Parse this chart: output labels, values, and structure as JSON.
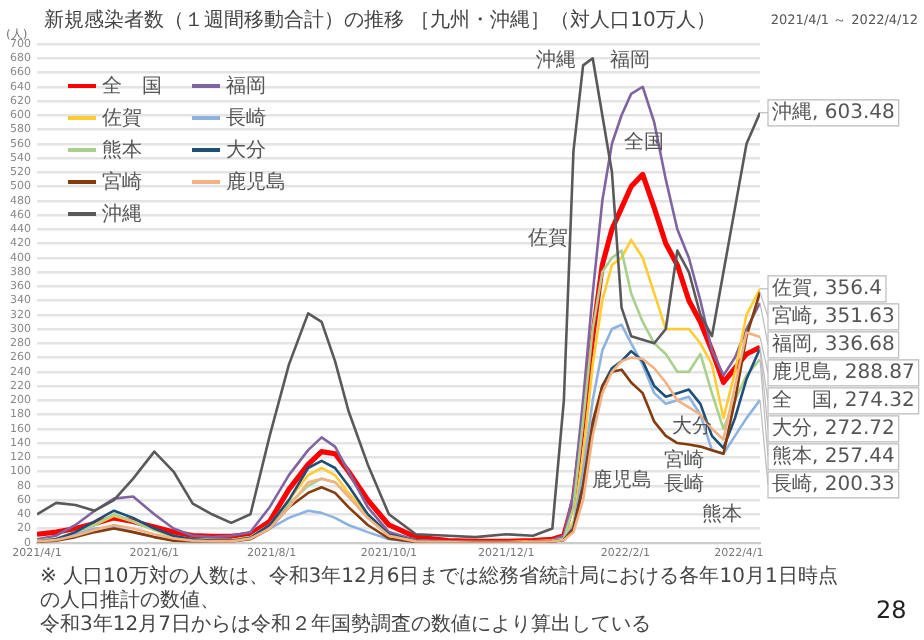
{
  "chart_data": {
    "type": "line",
    "title": "新規感染者数（１週間移動合計）の推移 ［九州・沖縄］（対人口10万人）",
    "subtitle": "2021/4/1 ～ 2022/4/12",
    "ylabel": "(人)",
    "x": [
      "2021-04-01",
      "2021-04-11",
      "2021-04-21",
      "2021-05-01",
      "2021-05-11",
      "2021-05-21",
      "2021-06-01",
      "2021-06-11",
      "2021-06-21",
      "2021-07-01",
      "2021-07-11",
      "2021-07-21",
      "2021-07-31",
      "2021-08-10",
      "2021-08-20",
      "2021-08-27",
      "2021-09-03",
      "2021-09-10",
      "2021-09-20",
      "2021-10-01",
      "2021-10-15",
      "2021-11-01",
      "2021-11-15",
      "2021-12-01",
      "2021-12-15",
      "2021-12-25",
      "2021-12-31",
      "2022-01-05",
      "2022-01-10",
      "2022-01-15",
      "2022-01-20",
      "2022-01-25",
      "2022-01-30",
      "2022-02-04",
      "2022-02-10",
      "2022-02-16",
      "2022-02-22",
      "2022-02-28",
      "2022-03-06",
      "2022-03-12",
      "2022-03-18",
      "2022-03-24",
      "2022-03-30",
      "2022-04-05",
      "2022-04-12"
    ],
    "xlim": [
      "2021-04-01",
      "2022-04-12"
    ],
    "ylim": [
      0,
      700
    ],
    "yticks": [
      0,
      20,
      40,
      60,
      80,
      100,
      120,
      140,
      160,
      180,
      200,
      220,
      240,
      260,
      280,
      300,
      320,
      340,
      360,
      380,
      400,
      420,
      440,
      460,
      480,
      500,
      520,
      540,
      560,
      580,
      600,
      620,
      640,
      660,
      680,
      700
    ],
    "xticks": [
      {
        "value": "2021-04-01",
        "label": "2021/4/1"
      },
      {
        "value": "2021-06-01",
        "label": "2021/6/1"
      },
      {
        "value": "2021-08-01",
        "label": "2021/8/1"
      },
      {
        "value": "2021-10-01",
        "label": "2021/10/1"
      },
      {
        "value": "2021-12-01",
        "label": "2021/12/1"
      },
      {
        "value": "2022-02-01",
        "label": "2022/2/1"
      },
      {
        "value": "2022-04-01",
        "label": "2022/4/1"
      }
    ],
    "grid": "y",
    "legend": "top left",
    "marker": "none",
    "line_style": "solid",
    "series": [
      {
        "name": "全　国",
        "color": "#ff0000",
        "values": [
          12,
          15,
          20,
          27,
          35,
          30,
          22,
          15,
          10,
          9,
          9,
          12,
          30,
          75,
          110,
          128,
          125,
          100,
          60,
          25,
          8,
          3,
          2,
          2,
          3,
          5,
          10,
          60,
          170,
          290,
          390,
          440,
          470,
          500,
          517,
          470,
          420,
          390,
          340,
          310,
          270,
          225,
          245,
          265,
          274.32
        ],
        "value_labels": [
          null,
          null,
          null,
          null,
          null,
          null,
          null,
          null,
          null,
          null,
          null,
          null,
          null,
          null,
          null,
          null,
          null,
          null,
          null,
          null,
          null,
          null,
          null,
          null,
          null,
          null,
          null,
          null,
          null,
          null,
          null,
          null,
          null,
          null,
          null,
          null,
          null,
          null,
          null,
          null,
          null,
          null,
          null,
          null,
          "全　国, 274.32"
        ]
      },
      {
        "name": "福岡",
        "color": "#8064a2",
        "values": [
          5,
          10,
          25,
          45,
          62,
          65,
          40,
          20,
          10,
          8,
          10,
          15,
          50,
          95,
          130,
          148,
          135,
          100,
          50,
          15,
          4,
          2,
          1,
          1,
          2,
          4,
          10,
          70,
          200,
          350,
          480,
          560,
          600,
          630,
          640,
          590,
          510,
          440,
          400,
          340,
          270,
          235,
          260,
          300,
          336.68
        ],
        "value_labels": [
          null,
          null,
          null,
          null,
          null,
          null,
          null,
          null,
          null,
          null,
          null,
          null,
          null,
          null,
          null,
          null,
          null,
          null,
          null,
          null,
          null,
          null,
          null,
          null,
          null,
          null,
          null,
          null,
          null,
          null,
          null,
          null,
          null,
          null,
          null,
          null,
          null,
          null,
          null,
          null,
          null,
          null,
          null,
          null,
          "福岡, 336.68"
        ]
      },
      {
        "name": "佐賀",
        "color": "#ffcc33",
        "values": [
          null,
          null,
          15,
          25,
          38,
          30,
          18,
          10,
          5,
          4,
          4,
          8,
          25,
          60,
          95,
          105,
          95,
          70,
          40,
          12,
          3,
          1,
          1,
          1,
          2,
          3,
          5,
          30,
          120,
          250,
          340,
          390,
          400,
          425,
          400,
          350,
          300,
          300,
          300,
          280,
          250,
          175,
          240,
          320,
          356.4
        ],
        "value_labels": [
          null,
          null,
          null,
          null,
          null,
          null,
          null,
          null,
          null,
          null,
          null,
          null,
          null,
          null,
          null,
          null,
          null,
          null,
          null,
          null,
          null,
          null,
          null,
          null,
          null,
          null,
          null,
          null,
          null,
          null,
          null,
          null,
          null,
          null,
          null,
          null,
          null,
          null,
          null,
          null,
          null,
          null,
          null,
          null,
          "佐賀, 356.4"
        ]
      },
      {
        "name": "長崎",
        "color": "#8db3e2",
        "values": [
          2,
          5,
          12,
          20,
          22,
          15,
          8,
          5,
          3,
          2,
          3,
          6,
          20,
          35,
          45,
          42,
          35,
          25,
          15,
          5,
          1,
          0,
          0,
          0,
          1,
          2,
          4,
          25,
          100,
          200,
          270,
          300,
          306,
          280,
          250,
          210,
          195,
          200,
          205,
          180,
          130,
          125,
          150,
          175,
          200.33
        ],
        "value_labels": [
          null,
          null,
          null,
          null,
          null,
          null,
          null,
          null,
          null,
          null,
          null,
          null,
          null,
          null,
          null,
          null,
          null,
          null,
          null,
          null,
          null,
          null,
          null,
          null,
          null,
          null,
          null,
          null,
          null,
          null,
          null,
          null,
          null,
          null,
          null,
          null,
          null,
          null,
          null,
          null,
          null,
          null,
          null,
          null,
          "長崎, 200.33"
        ]
      },
      {
        "name": "熊本",
        "color": "#a9d18e",
        "values": [
          3,
          6,
          15,
          25,
          40,
          30,
          18,
          8,
          5,
          4,
          4,
          8,
          25,
          55,
          80,
          90,
          85,
          65,
          35,
          10,
          2,
          1,
          0,
          0,
          1,
          2,
          6,
          50,
          170,
          300,
          380,
          400,
          410,
          350,
          310,
          280,
          265,
          240,
          240,
          265,
          210,
          160,
          200,
          235,
          257.44
        ],
        "value_labels": [
          null,
          null,
          null,
          null,
          null,
          null,
          null,
          null,
          null,
          null,
          null,
          null,
          null,
          null,
          null,
          null,
          null,
          null,
          null,
          null,
          null,
          null,
          null,
          null,
          null,
          null,
          null,
          null,
          null,
          null,
          null,
          null,
          null,
          null,
          null,
          null,
          null,
          null,
          null,
          null,
          null,
          null,
          null,
          null,
          "熊本, 257.44"
        ]
      },
      {
        "name": "大分",
        "color": "#1f4e79",
        "values": [
          2,
          5,
          15,
          30,
          45,
          35,
          20,
          10,
          5,
          3,
          3,
          7,
          25,
          60,
          105,
          115,
          105,
          80,
          40,
          12,
          3,
          1,
          0,
          0,
          1,
          2,
          4,
          20,
          80,
          160,
          220,
          245,
          255,
          269,
          255,
          220,
          205,
          210,
          215,
          195,
          150,
          133,
          175,
          230,
          272.72
        ],
        "value_labels": [
          null,
          null,
          null,
          null,
          null,
          null,
          null,
          null,
          null,
          null,
          null,
          null,
          null,
          null,
          null,
          null,
          null,
          null,
          null,
          null,
          null,
          null,
          null,
          null,
          null,
          null,
          null,
          null,
          null,
          null,
          null,
          null,
          null,
          null,
          null,
          null,
          null,
          null,
          null,
          null,
          null,
          null,
          null,
          null,
          "大分, 272.72"
        ]
      },
      {
        "name": "宮崎",
        "color": "#843c0c",
        "values": [
          1,
          3,
          8,
          15,
          20,
          15,
          8,
          3,
          2,
          2,
          2,
          5,
          20,
          50,
          70,
          78,
          70,
          50,
          25,
          6,
          1,
          0,
          0,
          0,
          1,
          2,
          4,
          20,
          80,
          170,
          220,
          240,
          243,
          225,
          210,
          170,
          150,
          140,
          138,
          135,
          130,
          125,
          200,
          290,
          351.63
        ],
        "value_labels": [
          null,
          null,
          null,
          null,
          null,
          null,
          null,
          null,
          null,
          null,
          null,
          null,
          null,
          null,
          null,
          null,
          null,
          null,
          null,
          null,
          null,
          null,
          null,
          null,
          null,
          null,
          null,
          null,
          null,
          null,
          null,
          null,
          null,
          null,
          null,
          null,
          null,
          null,
          null,
          null,
          null,
          null,
          null,
          null,
          "宮崎, 351.63"
        ]
      },
      {
        "name": "鹿児島",
        "color": "#f4b183",
        "values": [
          2,
          4,
          10,
          18,
          25,
          20,
          12,
          6,
          3,
          2,
          2,
          6,
          20,
          50,
          85,
          90,
          85,
          65,
          35,
          10,
          2,
          1,
          0,
          0,
          1,
          2,
          4,
          15,
          60,
          150,
          210,
          240,
          255,
          260,
          258,
          245,
          225,
          200,
          190,
          180,
          160,
          145,
          220,
          295,
          288.87
        ],
        "value_labels": [
          null,
          null,
          null,
          null,
          null,
          null,
          null,
          null,
          null,
          null,
          null,
          null,
          null,
          null,
          null,
          null,
          null,
          null,
          null,
          null,
          null,
          null,
          null,
          null,
          null,
          null,
          null,
          null,
          null,
          null,
          null,
          null,
          null,
          null,
          null,
          null,
          null,
          null,
          null,
          null,
          null,
          null,
          null,
          null,
          "鹿児島, 288.87"
        ]
      },
      {
        "name": "沖縄",
        "color": "#595959",
        "values": [
          40,
          56,
          53,
          45,
          60,
          90,
          128,
          100,
          55,
          40,
          28,
          40,
          150,
          250,
          322,
          310,
          255,
          185,
          110,
          40,
          12,
          10,
          8,
          12,
          10,
          20,
          200,
          550,
          670,
          680,
          600,
          520,
          330,
          290,
          285,
          280,
          300,
          410,
          380,
          320,
          290,
          380,
          470,
          560,
          603.48
        ],
        "value_labels": [
          null,
          null,
          null,
          null,
          null,
          null,
          null,
          null,
          null,
          null,
          null,
          null,
          null,
          null,
          null,
          null,
          null,
          null,
          null,
          null,
          null,
          null,
          null,
          null,
          null,
          null,
          null,
          null,
          null,
          null,
          null,
          null,
          null,
          null,
          null,
          null,
          null,
          null,
          null,
          null,
          null,
          null,
          null,
          null,
          "沖縄, 603.48"
        ]
      }
    ],
    "annotations": [
      "沖縄",
      "福岡",
      "全国",
      "佐賀",
      "鹿児島",
      "大分",
      "宮崎",
      "長崎",
      "熊本",
      "※ 人口10万対の人数は、令和3年12月6日までは総務省統計局における各年10月1日時点の人口推計の数値、",
      "令和3年12月7日からは令和２年国勢調査の数値により算出している",
      "28"
    ]
  }
}
